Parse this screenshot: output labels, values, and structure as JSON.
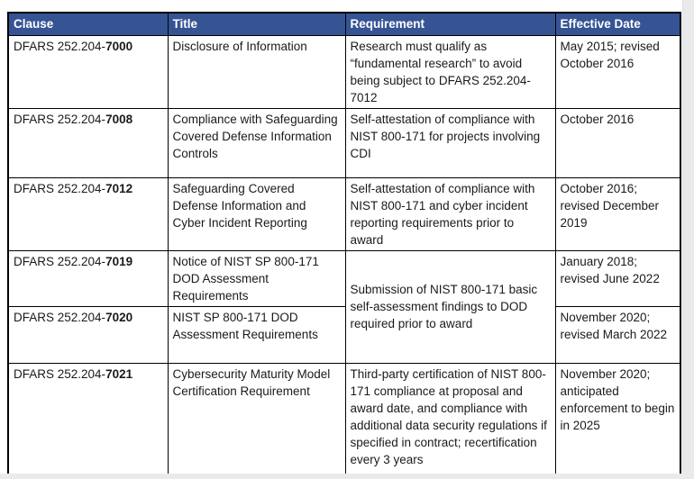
{
  "page": {
    "background": "#ffffff",
    "edge_color": "#eaeaec"
  },
  "table": {
    "header_bg": "#365494",
    "header_text_color": "#ffffff",
    "border_color": "#000000",
    "columns": [
      "Clause",
      "Title",
      "Requirement",
      "Effective Date"
    ],
    "rows": [
      {
        "clause_prefix": "DFARS 252.204-",
        "clause_number": "7000",
        "title": "Disclosure of Information",
        "requirement": "Research must qualify as “fundamental research” to avoid being subject to DFARS 252.204-7012",
        "effective_date": "May 2015; revised October 2016"
      },
      {
        "clause_prefix": "DFARS 252.204-",
        "clause_number": "7008",
        "title": "Compliance with Safeguarding Covered Defense Information Controls",
        "requirement": "Self-attestation of compliance with NIST 800-171 for projects involving CDI",
        "effective_date": "October 2016"
      },
      {
        "clause_prefix": "DFARS 252.204-",
        "clause_number": "7012",
        "title": "Safeguarding Covered Defense Information and Cyber Incident Reporting",
        "requirement": "Self-attestation of compliance with NIST 800-171 and cyber incident reporting requirements prior to award",
        "effective_date": "October 2016; revised December 2019"
      },
      {
        "clause_prefix": "DFARS 252.204-",
        "clause_number": "7019",
        "title": "Notice of NIST SP 800-171 DOD Assessment Requirements",
        "requirement": "Submission of NIST 800-171 basic self-assessment findings to DOD required prior to award",
        "requirement_rowspan": 2,
        "effective_date": "January 2018; revised June 2022"
      },
      {
        "clause_prefix": "DFARS 252.204-",
        "clause_number": "7020",
        "title": "NIST SP 800-171 DOD Assessment Requirements",
        "effective_date": "November 2020; revised March 2022"
      },
      {
        "clause_prefix": "DFARS 252.204-",
        "clause_number": "7021",
        "title": "Cybersecurity Maturity Model Certification Requirement",
        "requirement": "Third-party certification of NIST 800-171 compliance at proposal and award date, and compliance with additional data security regulations if specified in contract; recertification every 3 years",
        "effective_date": "November 2020; anticipated enforcement to begin in 2025"
      }
    ]
  }
}
